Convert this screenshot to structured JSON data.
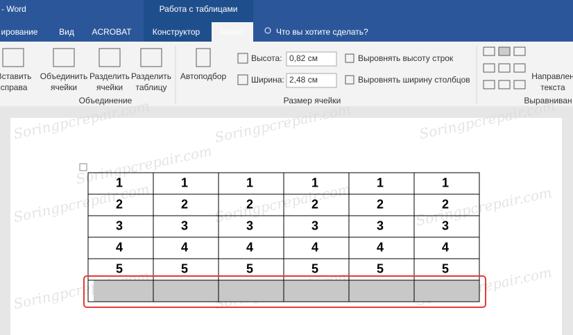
{
  "title_bar": {
    "app": "- Word",
    "context_group": "Работа с таблицами"
  },
  "tabs": [
    "ирование",
    "Вид",
    "ACROBAT",
    "Конструктор",
    "Макет"
  ],
  "active_tab": 4,
  "search": "Что вы хотите сделать?",
  "ribbon": {
    "buttons": [
      [
        "Вставить",
        "справа"
      ],
      [
        "Объединить",
        "ячейки"
      ],
      [
        "Разделить",
        "ячейки"
      ],
      [
        "Разделить",
        "таблицу"
      ],
      [
        "Автоподбор"
      ],
      [
        "Направлен",
        "текста"
      ]
    ],
    "height_label": "Высота:",
    "height_value": "0,82 см",
    "width_label": "Ширина:",
    "width_value": "2,48 см",
    "distribute_rows": "Выровнять высоту строк",
    "distribute_cols": "Выровнять ширину столбцов",
    "groups": [
      "Объединение",
      "Размер ячейки",
      "Выравниван"
    ]
  },
  "table": {
    "rows": [
      [
        1,
        1,
        1,
        1,
        1,
        1
      ],
      [
        2,
        2,
        2,
        2,
        2,
        2
      ],
      [
        3,
        3,
        3,
        3,
        3,
        3
      ],
      [
        4,
        4,
        4,
        4,
        4,
        4
      ],
      [
        5,
        5,
        5,
        5,
        5,
        5
      ],
      [
        null,
        null,
        null,
        null,
        null,
        null
      ]
    ]
  },
  "watermark": "Soringpcrepair.com"
}
